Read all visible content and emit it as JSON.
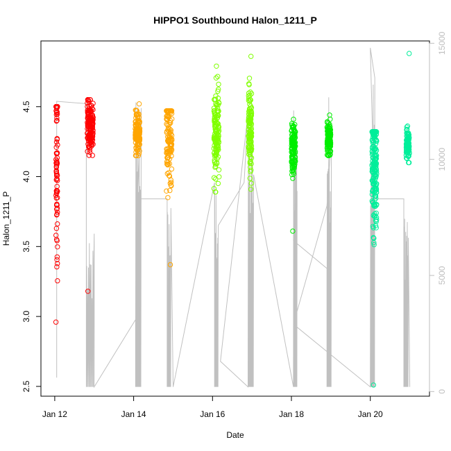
{
  "chart_data": {
    "type": "scatter",
    "title": "HIPPO1 Southbound Halon_1211_P",
    "xlabel": "Date",
    "ylabel": "Halon_1211_P",
    "xlim_days": [
      11.65,
      21.5
    ],
    "ylim": [
      2.43,
      4.97
    ],
    "ylim_right": [
      -200,
      15100
    ],
    "x_ticks": [
      {
        "value": 12,
        "label": "Jan 12"
      },
      {
        "value": 14,
        "label": "Jan 14"
      },
      {
        "value": 16,
        "label": "Jan 16"
      },
      {
        "value": 18,
        "label": "Jan 18"
      },
      {
        "value": 20,
        "label": "Jan 20"
      }
    ],
    "y_ticks": [
      {
        "value": 2.5,
        "label": "2.5"
      },
      {
        "value": 3.0,
        "label": "3.0"
      },
      {
        "value": 3.5,
        "label": "3.5"
      },
      {
        "value": 4.0,
        "label": "4.0"
      },
      {
        "value": 4.5,
        "label": "4.5"
      }
    ],
    "y_right_ticks": [
      {
        "value": 0,
        "label": "0"
      },
      {
        "value": 5000,
        "label": "5000"
      },
      {
        "value": 10000,
        "label": "10000"
      },
      {
        "value": 15000,
        "label": "15000"
      }
    ],
    "secondary_series_color": "#c0c0c0",
    "series": [
      {
        "color": "#ff0000",
        "clusters": [
          {
            "x": 12.05,
            "spread": 0.04,
            "n": 95,
            "y_min": 2.96,
            "y_max": 4.5,
            "y_mode": 4.15,
            "y_sd": 0.45
          },
          {
            "x": 12.9,
            "spread": 0.15,
            "n": 160,
            "y_min": 3.18,
            "y_max": 4.55,
            "y_mode": 4.37,
            "y_sd": 0.09
          }
        ]
      },
      {
        "color": "#ffa500",
        "clusters": [
          {
            "x": 14.1,
            "spread": 0.12,
            "n": 120,
            "y_min": 4.15,
            "y_max": 4.52,
            "y_mode": 4.33,
            "y_sd": 0.07
          },
          {
            "x": 14.9,
            "spread": 0.14,
            "n": 140,
            "y_min": 3.37,
            "y_max": 4.47,
            "y_mode": 4.3,
            "y_sd": 0.22
          }
        ]
      },
      {
        "color": "#7fff00",
        "clusters": [
          {
            "x": 16.1,
            "spread": 0.13,
            "n": 140,
            "y_min": 3.89,
            "y_max": 4.79,
            "y_mode": 4.3,
            "y_sd": 0.17
          },
          {
            "x": 16.95,
            "spread": 0.08,
            "n": 120,
            "y_min": 3.91,
            "y_max": 4.86,
            "y_mode": 4.3,
            "y_sd": 0.15
          }
        ]
      },
      {
        "color": "#00ee00",
        "clusters": [
          {
            "x": 18.05,
            "spread": 0.1,
            "n": 130,
            "y_min": 3.61,
            "y_max": 4.41,
            "y_mode": 4.2,
            "y_sd": 0.1
          },
          {
            "x": 18.95,
            "spread": 0.09,
            "n": 120,
            "y_min": 4.15,
            "y_max": 4.44,
            "y_mode": 4.27,
            "y_sd": 0.06
          }
        ]
      },
      {
        "color": "#00ee9a",
        "clusters": [
          {
            "x": 20.1,
            "spread": 0.12,
            "n": 200,
            "y_min": 2.51,
            "y_max": 4.32,
            "y_mode": 4.12,
            "y_sd": 0.25
          },
          {
            "x": 20.95,
            "spread": 0.08,
            "n": 90,
            "y_min": 4.1,
            "y_max": 4.88,
            "y_mode": 4.23,
            "y_sd": 0.05
          }
        ]
      }
    ]
  }
}
